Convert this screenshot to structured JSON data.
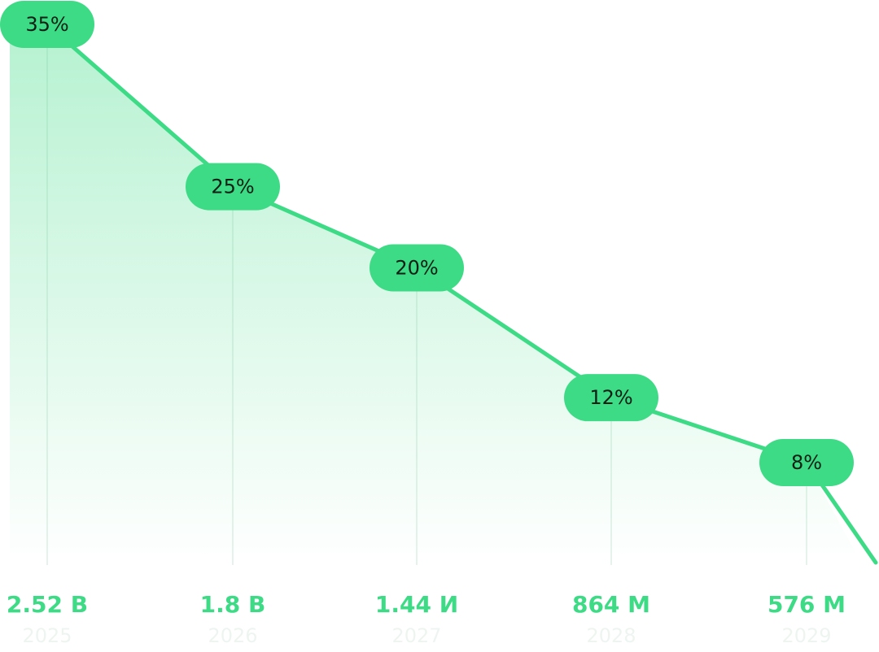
{
  "chart_data": {
    "type": "line",
    "categories": [
      "2025",
      "2026",
      "2027",
      "2028",
      "2029"
    ],
    "values": [
      35,
      25,
      20,
      12,
      8
    ],
    "value_labels": [
      "35%",
      "25%",
      "20%",
      "12%",
      "8%"
    ],
    "amount_labels": [
      "2.52 B",
      "1.8 B",
      "1.44 И",
      "864 M",
      "576 M"
    ],
    "color": "#3ddb85",
    "grid": true
  }
}
